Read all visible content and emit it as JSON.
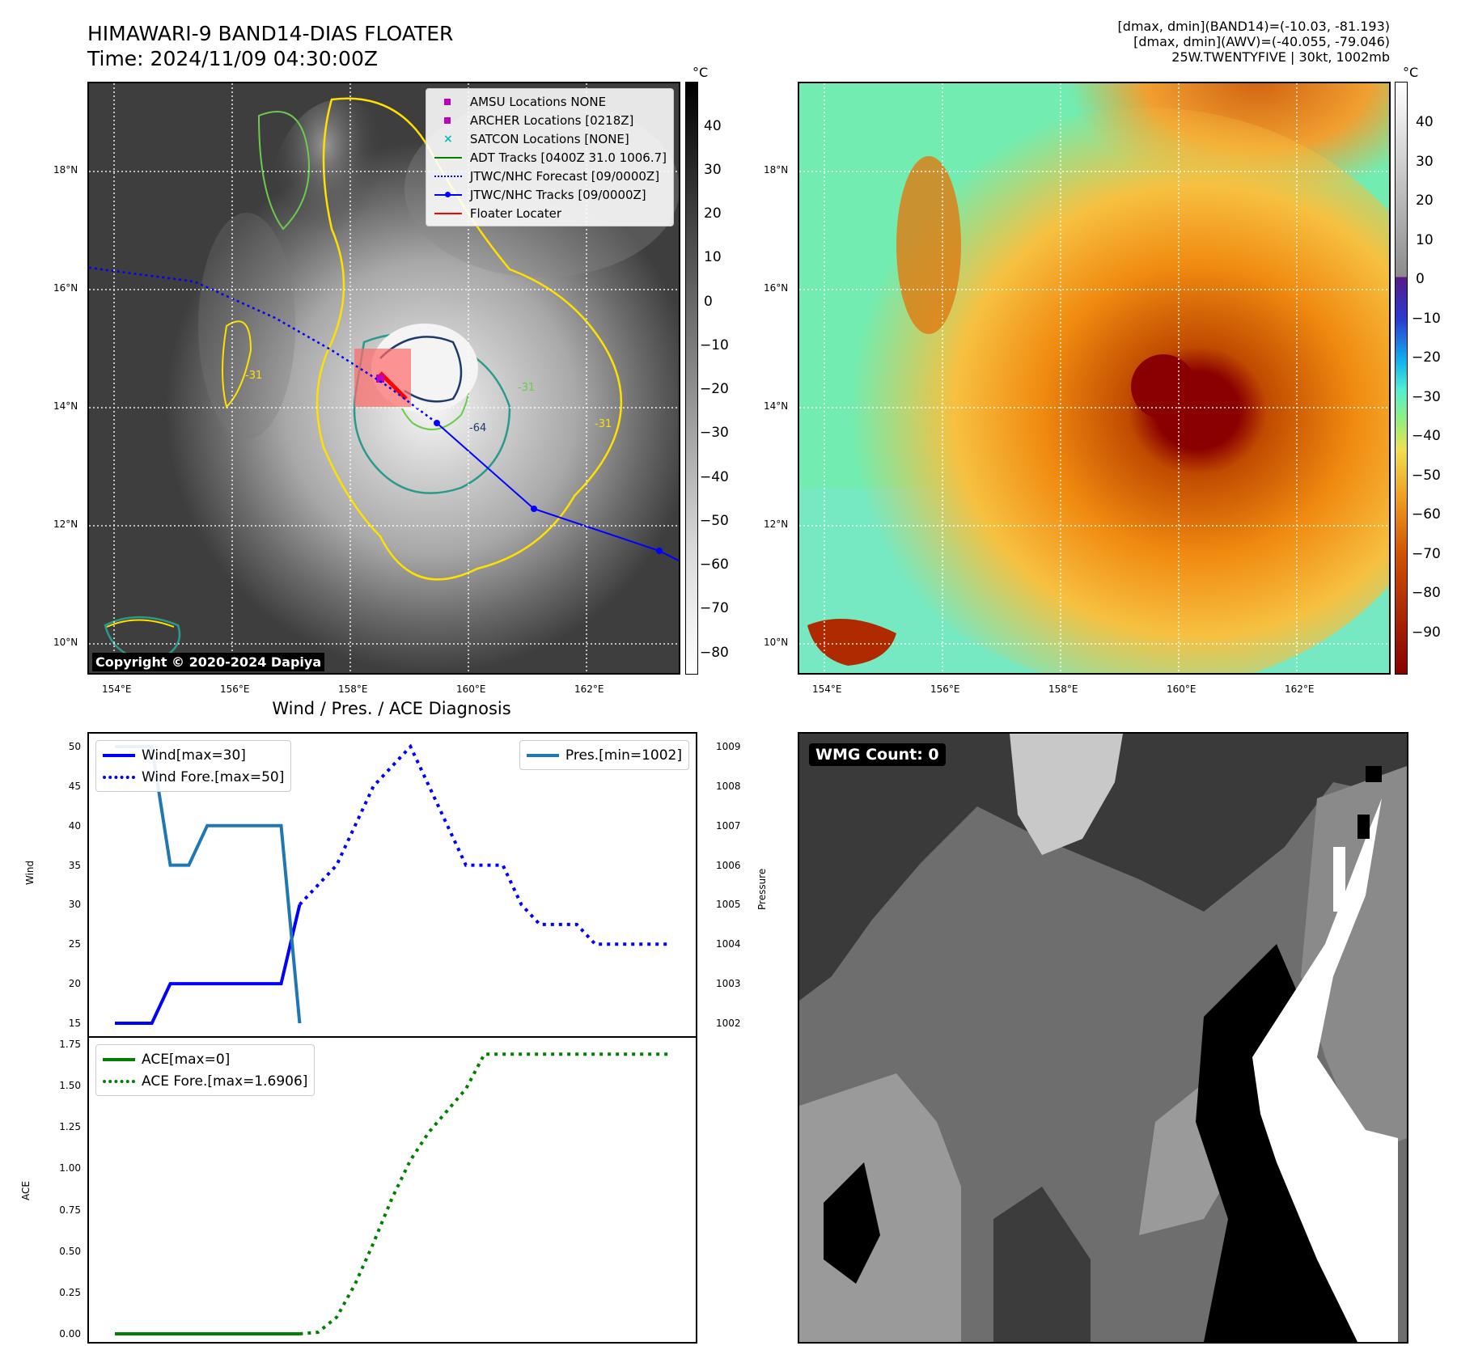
{
  "header": {
    "title_line1": "HIMAWARI-9 BAND14-DIAS FLOATER",
    "title_line2": "Time: 2024/11/09 04:30:00Z",
    "info_line1": "[dmax, dmin](BAND14)=(-10.03, -81.193)",
    "info_line2": "[dmax, dmin](AWV)=(-40.055, -79.046)",
    "info_line3": "25W.TWENTYFIVE | 30kt, 1002mb"
  },
  "map_axes": {
    "lat_labels": [
      "18°N",
      "16°N",
      "14°N",
      "12°N",
      "10°N"
    ],
    "lon_labels": [
      "154°E",
      "156°E",
      "158°E",
      "160°E",
      "162°E"
    ]
  },
  "ir_panel": {
    "colorbar_unit": "°C",
    "colorbar_ticks": [
      "40",
      "30",
      "20",
      "10",
      "0",
      "−10",
      "−20",
      "−30",
      "−40",
      "−50",
      "−60",
      "−70",
      "−80"
    ],
    "legend": [
      {
        "label": "AMSU Locations NONE",
        "symbol": "square",
        "color": "#bf00bf"
      },
      {
        "label": "ARCHER Locations [0218Z]",
        "symbol": "square",
        "color": "#bf00bf"
      },
      {
        "label": "SATCON Locations [NONE]",
        "symbol": "x",
        "color": "#00bfbf"
      },
      {
        "label": "ADT Tracks [0400Z 31.0 1006.7]",
        "symbol": "line",
        "color": "#008000"
      },
      {
        "label": "JTWC/NHC Forecast [09/0000Z]",
        "symbol": "dotted",
        "color": "#0000ff"
      },
      {
        "label": "JTWC/NHC Tracks [09/0000Z]",
        "symbol": "line-dot",
        "color": "#0000ff"
      },
      {
        "label": "Floater Locater",
        "symbol": "line",
        "color": "#ff0000"
      }
    ],
    "copyright": "Copyright © 2020-2024 Dapiya",
    "contour_labels": [
      "-64",
      "-31",
      "-31",
      "-31"
    ]
  },
  "awv_panel": {
    "colorbar_unit": "°C",
    "colorbar_ticks": [
      "40",
      "30",
      "20",
      "10",
      "0",
      "−10",
      "−20",
      "−30",
      "−40",
      "−50",
      "−60",
      "−70",
      "−80",
      "−90"
    ]
  },
  "wmg_panel": {
    "label": "WMG Count: 0"
  },
  "chart_data": [
    {
      "type": "line",
      "title": "Wind / Pres. / ACE Diagnosis",
      "ylabel": "Wind",
      "ylabel_right": "Pressure",
      "ylim": [
        15,
        50
      ],
      "ylim_right": [
        1002,
        1009
      ],
      "yticks": [
        "50",
        "45",
        "40",
        "35",
        "30",
        "25",
        "20",
        "15"
      ],
      "yticks_right": [
        "1009",
        "1008",
        "1007",
        "1006",
        "1005",
        "1004",
        "1003",
        "1002"
      ],
      "x": [
        0,
        1,
        2,
        3,
        4,
        5,
        6,
        7,
        8,
        9,
        10,
        11,
        12,
        13,
        14,
        15,
        16,
        17,
        18,
        19,
        20,
        21,
        22,
        23,
        24,
        25,
        26,
        27,
        28,
        29,
        30
      ],
      "series": [
        {
          "name": "Wind[max=30]",
          "color": "#0000ff",
          "style": "solid",
          "x": [
            0,
            2,
            3,
            4,
            9,
            10
          ],
          "values": [
            15,
            15,
            20,
            20,
            20,
            30
          ]
        },
        {
          "name": "Wind Fore.[max=50]",
          "color": "#0000ff",
          "style": "dotted",
          "x": [
            10,
            11,
            12,
            13,
            14,
            15,
            16,
            17,
            18,
            19,
            20,
            21,
            22,
            23,
            24,
            25,
            26,
            27,
            28,
            29,
            30
          ],
          "values": [
            30,
            32.5,
            35,
            40,
            45,
            47.5,
            50,
            45,
            40,
            35,
            35,
            35,
            30,
            27.5,
            27.5,
            27.5,
            25,
            25,
            25,
            25,
            25
          ]
        },
        {
          "name": "Pres.[min=1002]",
          "color": "#1f77b4",
          "style": "solid",
          "axis": "right",
          "x": [
            0,
            2,
            3,
            4,
            5,
            6,
            9,
            10
          ],
          "values": [
            1009,
            1009,
            1006,
            1006,
            1007,
            1007,
            1007,
            1002
          ]
        }
      ]
    },
    {
      "type": "line",
      "ylabel": "ACE",
      "ylim": [
        0,
        1.75
      ],
      "yticks": [
        "1.75",
        "1.50",
        "1.25",
        "1.00",
        "0.75",
        "0.50",
        "0.25",
        "0.00"
      ],
      "series": [
        {
          "name": "ACE[max=0]",
          "color": "#008000",
          "style": "solid",
          "x": [
            0,
            10
          ],
          "values": [
            0,
            0
          ]
        },
        {
          "name": "ACE Fore.[max=1.6906]",
          "color": "#008000",
          "style": "dotted",
          "x": [
            10,
            11,
            12,
            13,
            14,
            15,
            16,
            17,
            18,
            19,
            20,
            21,
            22,
            23,
            24,
            25,
            26,
            27,
            28,
            29,
            30
          ],
          "values": [
            0,
            0.01,
            0.1,
            0.3,
            0.55,
            0.82,
            1.05,
            1.22,
            1.35,
            1.48,
            1.6906,
            1.6906,
            1.6906,
            1.6906,
            1.6906,
            1.6906,
            1.6906,
            1.6906,
            1.6906,
            1.6906,
            1.6906
          ]
        }
      ]
    }
  ]
}
